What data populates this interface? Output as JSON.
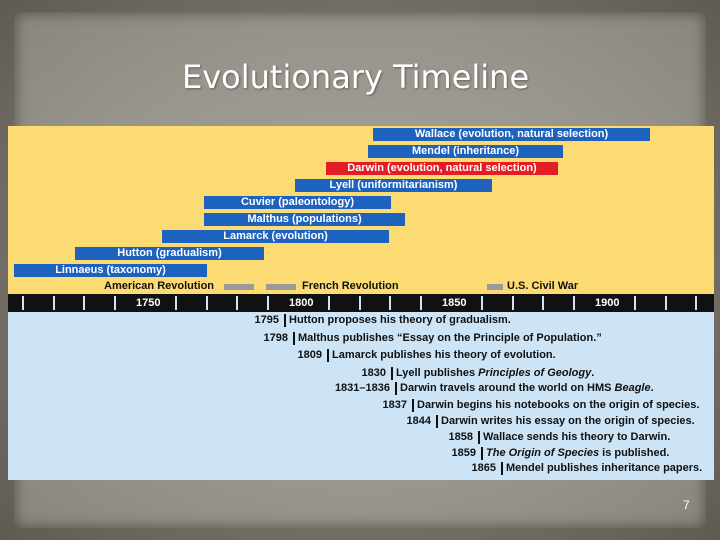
{
  "slide": {
    "title": "Evolutionary Timeline",
    "page_number": "7"
  },
  "timeline": {
    "people": [
      {
        "label": "Wallace (evolution, natural selection)"
      },
      {
        "label": "Mendel (inheritance)"
      },
      {
        "label": "Darwin (evolution, natural selection)",
        "highlight": true
      },
      {
        "label": "Lyell (uniformitarianism)"
      },
      {
        "label": "Cuvier (paleontology)"
      },
      {
        "label": "Malthus (populations)"
      },
      {
        "label": "Lamarck (evolution)"
      },
      {
        "label": "Hutton (gradualism)"
      },
      {
        "label": "Linnaeus (taxonomy)"
      }
    ],
    "revolutions": [
      {
        "label": "American Revolution"
      },
      {
        "label": "French Revolution"
      },
      {
        "label": "U.S. Civil War"
      }
    ],
    "axis_years": [
      "1750",
      "1800",
      "1850",
      "1900"
    ],
    "events": [
      {
        "date": "1795",
        "text": "Hutton proposes his theory of gradualism."
      },
      {
        "date": "1798",
        "text": "Malthus publishes “Essay on the Principle of Population.”"
      },
      {
        "date": "1809",
        "text": "Lamarck publishes his theory of evolution."
      },
      {
        "date": "1830",
        "text_before": "Lyell publishes ",
        "text_italic": "Principles of Geology",
        "text_after": "."
      },
      {
        "date": "1831–1836",
        "text_before": "Darwin travels around the world on HMS ",
        "text_italic": "Beagle",
        "text_after": "."
      },
      {
        "date": "1837",
        "text": "Darwin begins his notebooks on the origin of species."
      },
      {
        "date": "1844",
        "text": "Darwin writes his essay on the origin of species."
      },
      {
        "date": "1858",
        "text": "Wallace sends his theory to Darwin."
      },
      {
        "date": "1859",
        "text_before": "",
        "text_italic": "The Origin of Species",
        "text_after": " is published."
      },
      {
        "date": "1865",
        "text": "Mendel publishes inheritance papers."
      }
    ],
    "colors": {
      "bar_blue": "#1d62bf",
      "bar_red": "#e41c24",
      "upper_background": "#fcdc72",
      "lower_background": "#cce4f6"
    }
  }
}
